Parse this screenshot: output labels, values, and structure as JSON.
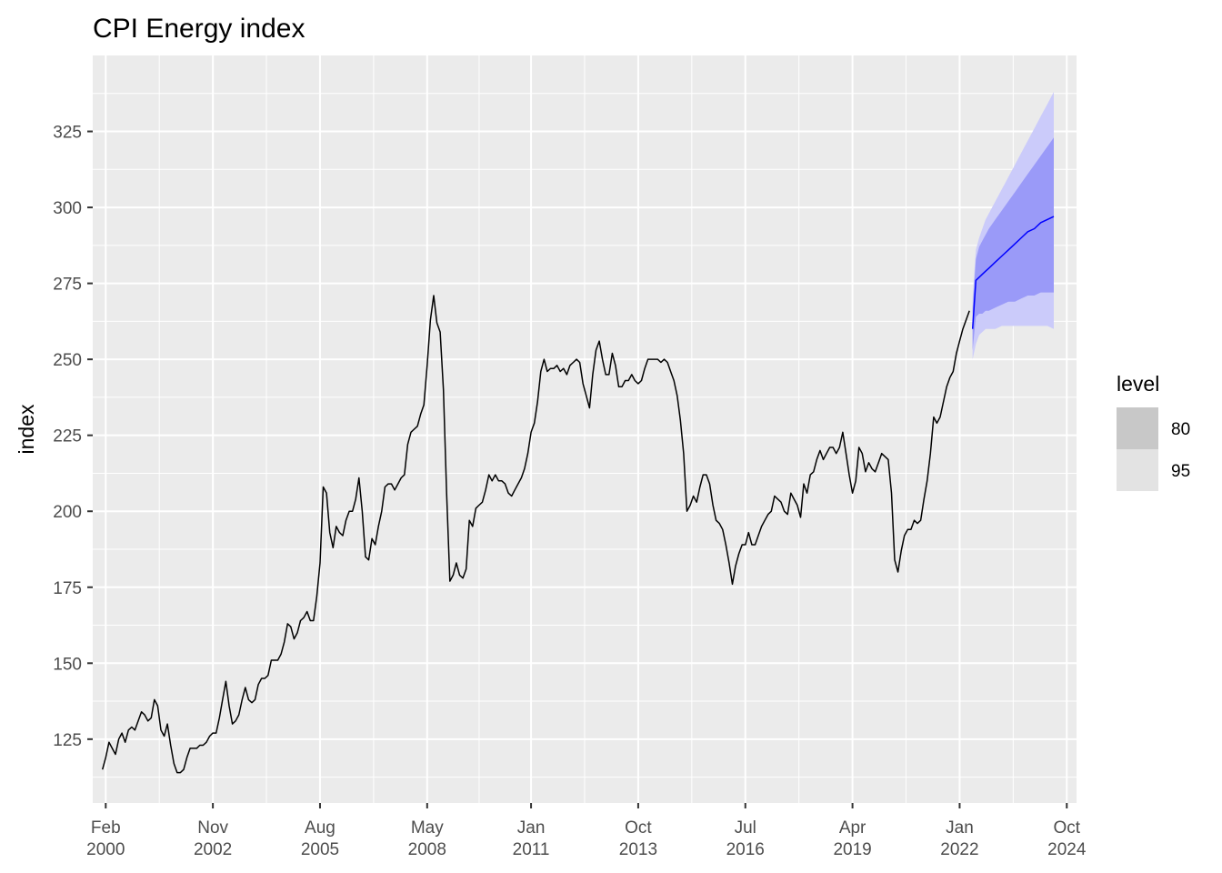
{
  "chart_data": {
    "type": "line",
    "title": "CPI Energy index",
    "xlabel": "",
    "ylabel": "index",
    "x_range": [
      "1999-10",
      "2025-01"
    ],
    "ylim": [
      104,
      350
    ],
    "y_ticks": [
      125,
      150,
      175,
      200,
      225,
      250,
      275,
      300,
      325
    ],
    "x_ticks": [
      {
        "date": "2000-02",
        "month": "Feb",
        "year": "2000"
      },
      {
        "date": "2002-11",
        "month": "Nov",
        "year": "2002"
      },
      {
        "date": "2005-08",
        "month": "Aug",
        "year": "2005"
      },
      {
        "date": "2008-05",
        "month": "May",
        "year": "2008"
      },
      {
        "date": "2011-01",
        "month": "Jan",
        "year": "2011"
      },
      {
        "date": "2013-10",
        "month": "Oct",
        "year": "2013"
      },
      {
        "date": "2016-07",
        "month": "Jul",
        "year": "2016"
      },
      {
        "date": "2019-04",
        "month": "Apr",
        "year": "2019"
      },
      {
        "date": "2022-01",
        "month": "Jan",
        "year": "2022"
      },
      {
        "date": "2024-10",
        "month": "Oct",
        "year": "2024"
      }
    ],
    "grid": true,
    "legend": {
      "title": "level",
      "placement": "right",
      "entries": [
        "80",
        "95"
      ]
    },
    "colors": {
      "panel": "#ebebeb",
      "grid": "#ffffff",
      "history": "#000000",
      "forecast": "#0000ff",
      "band80": "#9a9af8",
      "band95": "#cbcbfa",
      "legend80": "#c8c8c8",
      "legend95": "#e3e3e3"
    },
    "history": [
      [
        "2000-01",
        115
      ],
      [
        "2000-02",
        119
      ],
      [
        "2000-03",
        124
      ],
      [
        "2000-04",
        122
      ],
      [
        "2000-05",
        120
      ],
      [
        "2000-06",
        125
      ],
      [
        "2000-07",
        127
      ],
      [
        "2000-08",
        124
      ],
      [
        "2000-09",
        128
      ],
      [
        "2000-10",
        129
      ],
      [
        "2000-11",
        128
      ],
      [
        "2000-12",
        131
      ],
      [
        "2001-01",
        134
      ],
      [
        "2001-02",
        133
      ],
      [
        "2001-03",
        131
      ],
      [
        "2001-04",
        132
      ],
      [
        "2001-05",
        138
      ],
      [
        "2001-06",
        136
      ],
      [
        "2001-07",
        128
      ],
      [
        "2001-08",
        126
      ],
      [
        "2001-09",
        130
      ],
      [
        "2001-10",
        123
      ],
      [
        "2001-11",
        117
      ],
      [
        "2001-12",
        114
      ],
      [
        "2002-01",
        114
      ],
      [
        "2002-02",
        115
      ],
      [
        "2002-03",
        119
      ],
      [
        "2002-04",
        122
      ],
      [
        "2002-05",
        122
      ],
      [
        "2002-06",
        122
      ],
      [
        "2002-07",
        123
      ],
      [
        "2002-08",
        123
      ],
      [
        "2002-09",
        124
      ],
      [
        "2002-10",
        126
      ],
      [
        "2002-11",
        127
      ],
      [
        "2002-12",
        127
      ],
      [
        "2003-01",
        132
      ],
      [
        "2003-02",
        138
      ],
      [
        "2003-03",
        144
      ],
      [
        "2003-04",
        136
      ],
      [
        "2003-05",
        130
      ],
      [
        "2003-06",
        131
      ],
      [
        "2003-07",
        133
      ],
      [
        "2003-08",
        138
      ],
      [
        "2003-09",
        142
      ],
      [
        "2003-10",
        138
      ],
      [
        "2003-11",
        137
      ],
      [
        "2003-12",
        138
      ],
      [
        "2004-01",
        143
      ],
      [
        "2004-02",
        145
      ],
      [
        "2004-03",
        145
      ],
      [
        "2004-04",
        146
      ],
      [
        "2004-05",
        151
      ],
      [
        "2004-06",
        151
      ],
      [
        "2004-07",
        151
      ],
      [
        "2004-08",
        153
      ],
      [
        "2004-09",
        157
      ],
      [
        "2004-10",
        163
      ],
      [
        "2004-11",
        162
      ],
      [
        "2004-12",
        158
      ],
      [
        "2005-01",
        160
      ],
      [
        "2005-02",
        164
      ],
      [
        "2005-03",
        165
      ],
      [
        "2005-04",
        167
      ],
      [
        "2005-05",
        164
      ],
      [
        "2005-06",
        164
      ],
      [
        "2005-07",
        172
      ],
      [
        "2005-08",
        183
      ],
      [
        "2005-09",
        208
      ],
      [
        "2005-10",
        206
      ],
      [
        "2005-11",
        193
      ],
      [
        "2005-12",
        188
      ],
      [
        "2006-01",
        195
      ],
      [
        "2006-02",
        193
      ],
      [
        "2006-03",
        192
      ],
      [
        "2006-04",
        197
      ],
      [
        "2006-05",
        200
      ],
      [
        "2006-06",
        200
      ],
      [
        "2006-07",
        204
      ],
      [
        "2006-08",
        211
      ],
      [
        "2006-09",
        200
      ],
      [
        "2006-10",
        185
      ],
      [
        "2006-11",
        184
      ],
      [
        "2006-12",
        191
      ],
      [
        "2007-01",
        189
      ],
      [
        "2007-02",
        195
      ],
      [
        "2007-03",
        200
      ],
      [
        "2007-04",
        208
      ],
      [
        "2007-05",
        209
      ],
      [
        "2007-06",
        209
      ],
      [
        "2007-07",
        207
      ],
      [
        "2007-08",
        209
      ],
      [
        "2007-09",
        211
      ],
      [
        "2007-10",
        212
      ],
      [
        "2007-11",
        222
      ],
      [
        "2007-12",
        226
      ],
      [
        "2008-01",
        227
      ],
      [
        "2008-02",
        228
      ],
      [
        "2008-03",
        232
      ],
      [
        "2008-04",
        235
      ],
      [
        "2008-05",
        248
      ],
      [
        "2008-06",
        263
      ],
      [
        "2008-07",
        271
      ],
      [
        "2008-08",
        262
      ],
      [
        "2008-09",
        259
      ],
      [
        "2008-10",
        240
      ],
      [
        "2008-11",
        206
      ],
      [
        "2008-12",
        177
      ],
      [
        "2009-01",
        179
      ],
      [
        "2009-02",
        183
      ],
      [
        "2009-03",
        179
      ],
      [
        "2009-04",
        178
      ],
      [
        "2009-05",
        181
      ],
      [
        "2009-06",
        197
      ],
      [
        "2009-07",
        195
      ],
      [
        "2009-08",
        201
      ],
      [
        "2009-09",
        202
      ],
      [
        "2009-10",
        203
      ],
      [
        "2009-11",
        207
      ],
      [
        "2009-12",
        212
      ],
      [
        "2010-01",
        210
      ],
      [
        "2010-02",
        212
      ],
      [
        "2010-03",
        210
      ],
      [
        "2010-04",
        210
      ],
      [
        "2010-05",
        209
      ],
      [
        "2010-06",
        206
      ],
      [
        "2010-07",
        205
      ],
      [
        "2010-08",
        207
      ],
      [
        "2010-09",
        209
      ],
      [
        "2010-10",
        211
      ],
      [
        "2010-11",
        214
      ],
      [
        "2010-12",
        219
      ],
      [
        "2011-01",
        226
      ],
      [
        "2011-02",
        229
      ],
      [
        "2011-03",
        236
      ],
      [
        "2011-04",
        246
      ],
      [
        "2011-05",
        250
      ],
      [
        "2011-06",
        246
      ],
      [
        "2011-07",
        247
      ],
      [
        "2011-08",
        247
      ],
      [
        "2011-09",
        248
      ],
      [
        "2011-10",
        246
      ],
      [
        "2011-11",
        247
      ],
      [
        "2011-12",
        245
      ],
      [
        "2012-01",
        248
      ],
      [
        "2012-02",
        249
      ],
      [
        "2012-03",
        250
      ],
      [
        "2012-04",
        249
      ],
      [
        "2012-05",
        242
      ],
      [
        "2012-06",
        238
      ],
      [
        "2012-07",
        234
      ],
      [
        "2012-08",
        245
      ],
      [
        "2012-09",
        253
      ],
      [
        "2012-10",
        256
      ],
      [
        "2012-11",
        250
      ],
      [
        "2012-12",
        245
      ],
      [
        "2013-01",
        245
      ],
      [
        "2013-02",
        252
      ],
      [
        "2013-03",
        248
      ],
      [
        "2013-04",
        241
      ],
      [
        "2013-05",
        241
      ],
      [
        "2013-06",
        243
      ],
      [
        "2013-07",
        243
      ],
      [
        "2013-08",
        245
      ],
      [
        "2013-09",
        243
      ],
      [
        "2013-10",
        242
      ],
      [
        "2013-11",
        243
      ],
      [
        "2013-12",
        247
      ],
      [
        "2014-01",
        250
      ],
      [
        "2014-02",
        250
      ],
      [
        "2014-03",
        250
      ],
      [
        "2014-04",
        250
      ],
      [
        "2014-05",
        249
      ],
      [
        "2014-06",
        250
      ],
      [
        "2014-07",
        249
      ],
      [
        "2014-08",
        246
      ],
      [
        "2014-09",
        243
      ],
      [
        "2014-10",
        238
      ],
      [
        "2014-11",
        230
      ],
      [
        "2014-12",
        219
      ],
      [
        "2015-01",
        200
      ],
      [
        "2015-02",
        202
      ],
      [
        "2015-03",
        205
      ],
      [
        "2015-04",
        203
      ],
      [
        "2015-05",
        208
      ],
      [
        "2015-06",
        212
      ],
      [
        "2015-07",
        212
      ],
      [
        "2015-08",
        209
      ],
      [
        "2015-09",
        202
      ],
      [
        "2015-10",
        197
      ],
      [
        "2015-11",
        196
      ],
      [
        "2015-12",
        194
      ],
      [
        "2016-01",
        189
      ],
      [
        "2016-02",
        183
      ],
      [
        "2016-03",
        176
      ],
      [
        "2016-04",
        182
      ],
      [
        "2016-05",
        186
      ],
      [
        "2016-06",
        189
      ],
      [
        "2016-07",
        189
      ],
      [
        "2016-08",
        193
      ],
      [
        "2016-09",
        189
      ],
      [
        "2016-10",
        189
      ],
      [
        "2016-11",
        192
      ],
      [
        "2016-12",
        195
      ],
      [
        "2017-01",
        197
      ],
      [
        "2017-02",
        199
      ],
      [
        "2017-03",
        200
      ],
      [
        "2017-04",
        205
      ],
      [
        "2017-05",
        204
      ],
      [
        "2017-06",
        203
      ],
      [
        "2017-07",
        200
      ],
      [
        "2017-08",
        199
      ],
      [
        "2017-09",
        206
      ],
      [
        "2017-10",
        204
      ],
      [
        "2017-11",
        202
      ],
      [
        "2017-12",
        198
      ],
      [
        "2018-01",
        209
      ],
      [
        "2018-02",
        206
      ],
      [
        "2018-03",
        212
      ],
      [
        "2018-04",
        213
      ],
      [
        "2018-05",
        217
      ],
      [
        "2018-06",
        220
      ],
      [
        "2018-07",
        217
      ],
      [
        "2018-08",
        219
      ],
      [
        "2018-09",
        221
      ],
      [
        "2018-10",
        221
      ],
      [
        "2018-11",
        219
      ],
      [
        "2018-12",
        221
      ],
      [
        "2019-01",
        226
      ],
      [
        "2019-02",
        219
      ],
      [
        "2019-03",
        212
      ],
      [
        "2019-04",
        206
      ],
      [
        "2019-05",
        210
      ],
      [
        "2019-06",
        221
      ],
      [
        "2019-07",
        219
      ],
      [
        "2019-08",
        213
      ],
      [
        "2019-09",
        216
      ],
      [
        "2019-10",
        214
      ],
      [
        "2019-11",
        213
      ],
      [
        "2019-12",
        216
      ],
      [
        "2020-01",
        219
      ],
      [
        "2020-02",
        218
      ],
      [
        "2020-03",
        217
      ],
      [
        "2020-04",
        206
      ],
      [
        "2020-05",
        184
      ],
      [
        "2020-06",
        180
      ],
      [
        "2020-07",
        187
      ],
      [
        "2020-08",
        192
      ],
      [
        "2020-09",
        194
      ],
      [
        "2020-10",
        194
      ],
      [
        "2020-11",
        197
      ],
      [
        "2020-12",
        196
      ],
      [
        "2021-01",
        197
      ],
      [
        "2021-02",
        204
      ],
      [
        "2021-03",
        210
      ],
      [
        "2021-04",
        219
      ],
      [
        "2021-05",
        231
      ],
      [
        "2021-06",
        229
      ],
      [
        "2021-07",
        231
      ],
      [
        "2021-08",
        236
      ],
      [
        "2021-09",
        241
      ],
      [
        "2021-10",
        244
      ],
      [
        "2021-11",
        246
      ],
      [
        "2021-12",
        252
      ],
      [
        "2022-01",
        256
      ],
      [
        "2022-02",
        260
      ],
      [
        "2022-03",
        263
      ],
      [
        "2022-04",
        266
      ]
    ],
    "forecast": [
      {
        "x": "2022-05",
        "mean": 260,
        "lo80": 253,
        "hi80": 267,
        "lo95": 250,
        "hi95": 270
      },
      {
        "x": "2022-06",
        "mean": 276,
        "lo80": 264,
        "hi80": 283,
        "lo95": 255,
        "hi95": 286
      },
      {
        "x": "2022-07",
        "mean": 277,
        "lo80": 265,
        "hi80": 287,
        "lo95": 258,
        "hi95": 290
      },
      {
        "x": "2022-08",
        "mean": 278,
        "lo80": 265,
        "hi80": 289,
        "lo95": 259,
        "hi95": 293
      },
      {
        "x": "2022-09",
        "mean": 279,
        "lo80": 266,
        "hi80": 291,
        "lo95": 260,
        "hi95": 296
      },
      {
        "x": "2022-10",
        "mean": 280,
        "lo80": 266,
        "hi80": 293,
        "lo95": 260,
        "hi95": 298
      },
      {
        "x": "2022-12",
        "mean": 282,
        "lo80": 267,
        "hi80": 296,
        "lo95": 260,
        "hi95": 302
      },
      {
        "x": "2023-02",
        "mean": 284,
        "lo80": 268,
        "hi80": 299,
        "lo95": 261,
        "hi95": 306
      },
      {
        "x": "2023-04",
        "mean": 286,
        "lo80": 269,
        "hi80": 302,
        "lo95": 261,
        "hi95": 310
      },
      {
        "x": "2023-06",
        "mean": 288,
        "lo80": 269,
        "hi80": 305,
        "lo95": 261,
        "hi95": 314
      },
      {
        "x": "2023-08",
        "mean": 290,
        "lo80": 270,
        "hi80": 308,
        "lo95": 261,
        "hi95": 318
      },
      {
        "x": "2023-10",
        "mean": 292,
        "lo80": 271,
        "hi80": 311,
        "lo95": 261,
        "hi95": 322
      },
      {
        "x": "2023-12",
        "mean": 293,
        "lo80": 271,
        "hi80": 314,
        "lo95": 261,
        "hi95": 326
      },
      {
        "x": "2024-02",
        "mean": 295,
        "lo80": 272,
        "hi80": 317,
        "lo95": 261,
        "hi95": 330
      },
      {
        "x": "2024-04",
        "mean": 296,
        "lo80": 272,
        "hi80": 320,
        "lo95": 261,
        "hi95": 334
      },
      {
        "x": "2024-06",
        "mean": 297,
        "lo80": 272,
        "hi80": 323,
        "lo95": 260,
        "hi95": 338
      }
    ]
  }
}
